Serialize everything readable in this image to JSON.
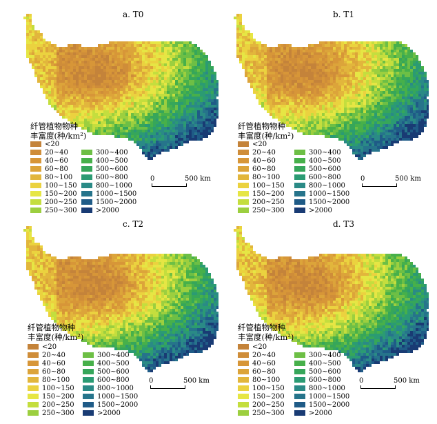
{
  "legend": {
    "title_line1": "纤管植物物种",
    "title_line2": "丰富度(种/km²)",
    "items_col1": [
      {
        "label": "<20",
        "color": "#c4833a"
      },
      {
        "label": "20~40",
        "color": "#cf8d39"
      },
      {
        "label": "40~60",
        "color": "#d79638"
      },
      {
        "label": "60~80",
        "color": "#dca43a"
      },
      {
        "label": "80~100",
        "color": "#e2b63c"
      },
      {
        "label": "100~150",
        "color": "#ebd23f"
      },
      {
        "label": "150~200",
        "color": "#e6e644"
      },
      {
        "label": "200~250",
        "color": "#c4de3e"
      },
      {
        "label": "250~300",
        "color": "#9ccf3f"
      }
    ],
    "items_col2": [
      {
        "label": "300~400",
        "color": "#6dbf45"
      },
      {
        "label": "400~500",
        "color": "#47b04a"
      },
      {
        "label": "500~600",
        "color": "#36a65a"
      },
      {
        "label": "600~800",
        "color": "#2b9b73"
      },
      {
        "label": "800~1000",
        "color": "#2a8a86"
      },
      {
        "label": "1000~1500",
        "color": "#26748b"
      },
      {
        "label": "1500~2000",
        "color": "#1f5b87"
      },
      {
        "label": ">2000",
        "color": "#193b74"
      }
    ]
  },
  "scale_bar": {
    "start": "0",
    "end": "500 km"
  },
  "panels": [
    {
      "title": "a. T0"
    },
    {
      "title": "b. T1"
    },
    {
      "title": "c. T2"
    },
    {
      "title": "d. T3"
    }
  ]
}
